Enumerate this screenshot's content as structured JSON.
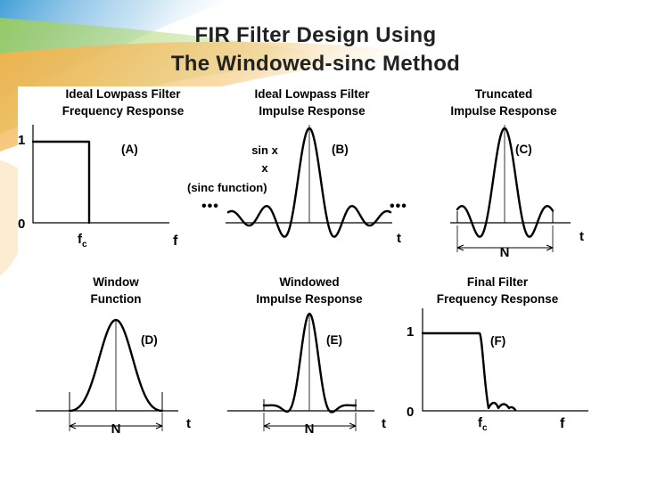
{
  "slide": {
    "title_line1": "FIR Filter Design Using",
    "title_line2": "The Windowed-sinc Method",
    "accent_orange": "#f08c1e",
    "accent_green": "#7ab83a",
    "accent_blue": "#2e8fc8"
  },
  "panels": [
    {
      "id": "A",
      "title_line1": "Ideal Lowpass Filter",
      "title_line2": "Frequency Response",
      "tag": "(A)",
      "y_tick_top": "1",
      "y_tick_bottom": "0",
      "x_label_fc": "f",
      "x_label_fc_sub": "c",
      "x_axis_label": "f"
    },
    {
      "id": "B",
      "title_line1": "Ideal Lowpass Filter",
      "title_line2": "Impulse Response",
      "tag": "(B)",
      "formula_numerator": "sin x",
      "formula_denominator": "x",
      "formula_caption": "(sinc function)",
      "ellipsis_left": "•••",
      "ellipsis_right": "•••",
      "x_axis_label": "t"
    },
    {
      "id": "C",
      "title_line1": "Truncated",
      "title_line2": "Impulse Response",
      "tag": "(C)",
      "width_label": "N",
      "x_axis_label": "t"
    },
    {
      "id": "D",
      "title_line1": "Window",
      "title_line2": "Function",
      "tag": "(D)",
      "width_label": "N",
      "x_axis_label": "t"
    },
    {
      "id": "E",
      "title_line1": "Windowed",
      "title_line2": "Impulse Response",
      "tag": "(E)",
      "width_label": "N",
      "x_axis_label": "t"
    },
    {
      "id": "F",
      "title_line1": "Final Filter",
      "title_line2": "Frequency Response",
      "tag": "(F)",
      "y_tick_top": "1",
      "y_tick_bottom": "0",
      "x_label_fc": "f",
      "x_label_fc_sub": "c",
      "x_axis_label": "f"
    }
  ]
}
